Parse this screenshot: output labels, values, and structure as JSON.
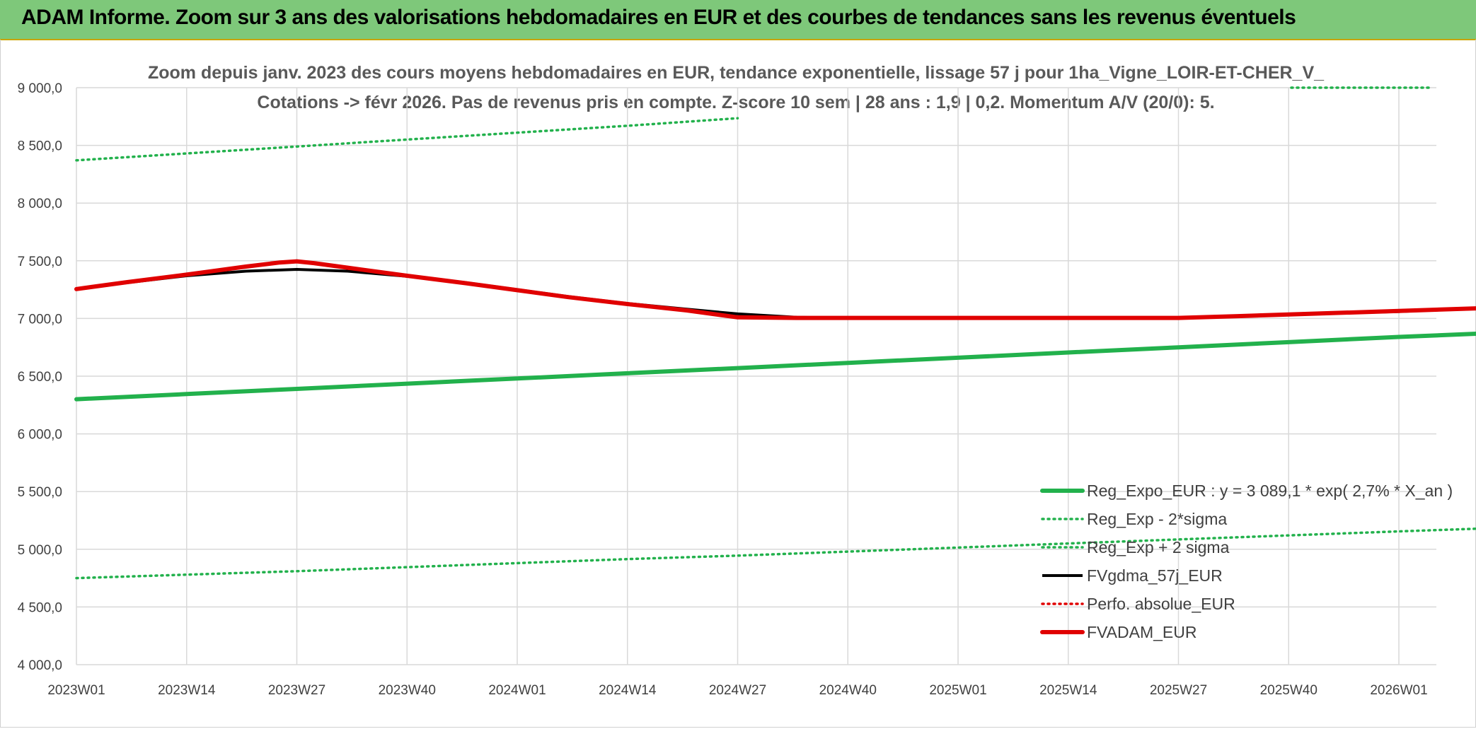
{
  "banner": {
    "title": "ADAM Informe. Zoom sur 3 ans des valorisations hebdomadaires en EUR et des courbes de tendances sans les revenus éventuels"
  },
  "chart_data": {
    "type": "line",
    "title_line1": "Zoom depuis janv. 2023 des cours moyens hebdomadaires en EUR, tendance exponentielle, lissage 57 j pour 1ha_Vigne_LOIR-ET-CHER_V_",
    "title_line2": "Cotations -> févr 2026. Pas de revenus pris en compte. Z-score 10 sem | 28 ans : 1,9 | 0,2. Momentum A/V (20/0): 5.",
    "ylim": [
      4000,
      9000
    ],
    "yticks": [
      4000,
      4500,
      5000,
      5500,
      6000,
      6500,
      7000,
      7500,
      8000,
      8500,
      9000
    ],
    "ytick_labels": [
      "4 000,0",
      "4 500,0",
      "5 000,0",
      "5 500,0",
      "6 000,0",
      "6 500,0",
      "7 000,0",
      "7 500,0",
      "8 000,0",
      "8 500,0",
      "9 000,0"
    ],
    "xticks": [
      "2023W01",
      "2023W14",
      "2023W27",
      "2023W40",
      "2024W01",
      "2024W14",
      "2024W27",
      "2024W40",
      "2025W01",
      "2025W14",
      "2025W27",
      "2025W40",
      "2026W01"
    ],
    "grid": true,
    "legend_position": "bottom-right",
    "series": [
      {
        "name": "Reg_Expo_EUR : y = 3 089,1 * exp( 2,7% *  X_an )",
        "color": "#22b14c",
        "style": "solid-thick",
        "x": [
          0,
          13,
          26,
          39,
          52,
          65,
          78,
          91,
          104,
          117,
          130,
          143,
          156,
          166
        ],
        "y": [
          6300,
          6345,
          6390,
          6435,
          6480,
          6525,
          6570,
          6615,
          6660,
          6705,
          6750,
          6795,
          6840,
          6870
        ]
      },
      {
        "name": "Reg_Exp - 2*sigma",
        "color": "#22b14c",
        "style": "dotted",
        "x": [
          0,
          13,
          26,
          39,
          52,
          65,
          78,
          91,
          104,
          117,
          130,
          143,
          156,
          166
        ],
        "y": [
          4750,
          4780,
          4810,
          4845,
          4880,
          4915,
          4945,
          4980,
          5015,
          5050,
          5085,
          5120,
          5155,
          5180
        ]
      },
      {
        "name": "Reg_Exp + 2 sigma",
        "color": "#22b14c",
        "style": "dotted",
        "x": [
          0,
          13,
          26,
          39,
          52,
          65,
          78
        ],
        "y": [
          8370,
          8430,
          8490,
          8550,
          8610,
          8670,
          8735
        ]
      },
      {
        "name": "FVgdma_57j_EUR",
        "color": "#000000",
        "style": "solid",
        "x": [
          0,
          6,
          13,
          20,
          26,
          32,
          39,
          46,
          52,
          58,
          65,
          72,
          78,
          85,
          91,
          104,
          117,
          130,
          137,
          143,
          156,
          166
        ],
        "y": [
          7255,
          7310,
          7370,
          7410,
          7425,
          7410,
          7365,
          7310,
          7250,
          7190,
          7130,
          7080,
          7040,
          7010,
          7005,
          7005,
          7005,
          7005,
          7020,
          7035,
          7060,
          7090
        ]
      },
      {
        "name": "Perfo. absolue_EUR",
        "color": "#e00000",
        "style": "dotted",
        "x": [],
        "y": []
      },
      {
        "name": "FVADAM_EUR",
        "color": "#e00000",
        "style": "solid-thick",
        "x": [
          0,
          6,
          13,
          20,
          24,
          26,
          28,
          32,
          39,
          46,
          52,
          58,
          65,
          72,
          78,
          85,
          91,
          104,
          117,
          130,
          137,
          143,
          156,
          166
        ],
        "y": [
          7255,
          7315,
          7380,
          7450,
          7485,
          7495,
          7480,
          7440,
          7370,
          7305,
          7245,
          7185,
          7125,
          7070,
          7010,
          7005,
          7005,
          7005,
          7005,
          7005,
          7020,
          7035,
          7065,
          7090
        ]
      }
    ]
  }
}
